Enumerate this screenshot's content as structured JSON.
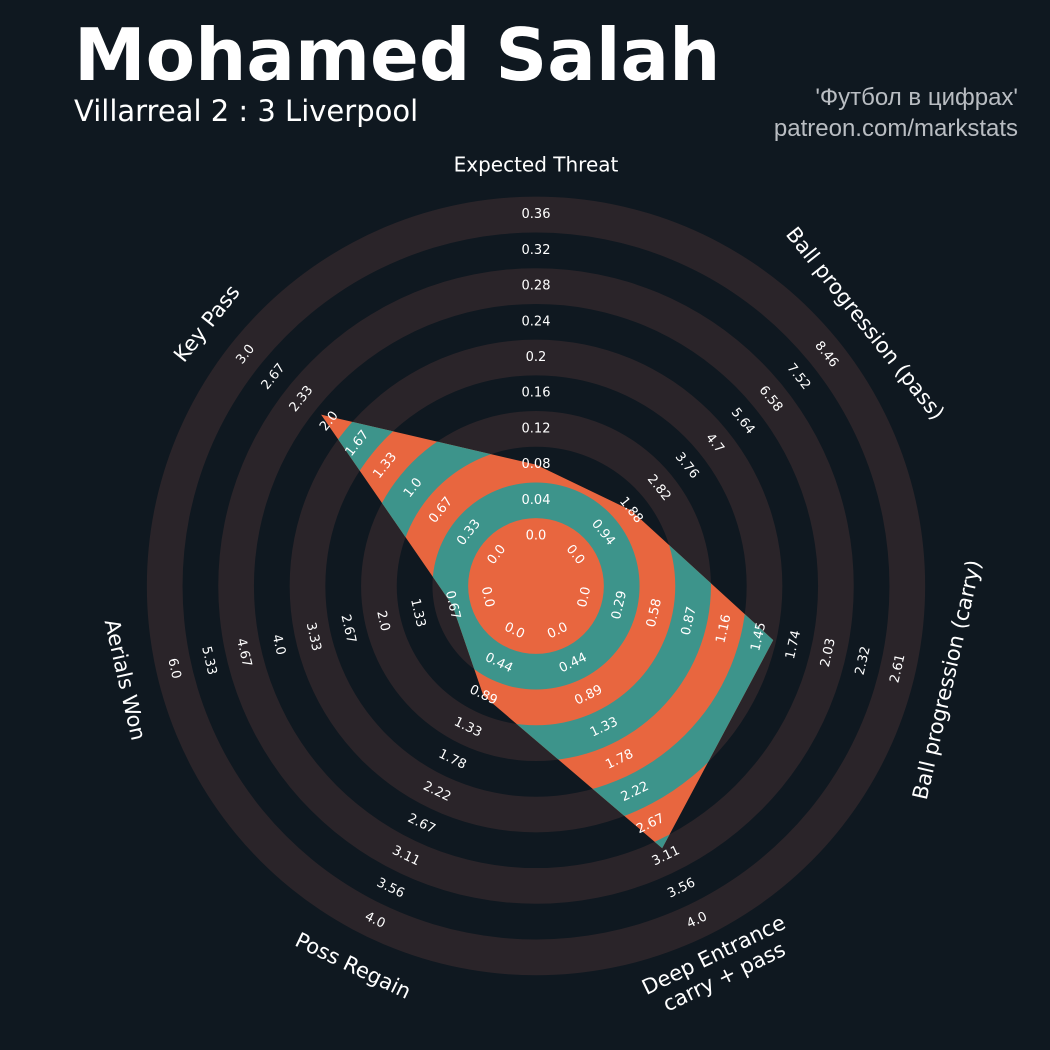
{
  "header": {
    "title": "Mohamed Salah",
    "subtitle": "Villarreal 2 : 3 Liverpool",
    "credit_line1": "'Футбол в цифрах'",
    "credit_line2": "patreon.com/markstats"
  },
  "colors": {
    "background": "#0f1820",
    "ring_band": "#2a2429",
    "player_primary": "#e8663f",
    "player_secondary": "#3d948b"
  },
  "chart_data": {
    "type": "radar",
    "title": "Mohamed Salah",
    "subtitle": "Villarreal 2 : 3 Liverpool",
    "params": [
      {
        "label": "Expected Threat",
        "value": 0.08,
        "ticks": [
          "0.0",
          "0.04",
          "0.08",
          "0.12",
          "0.16",
          "0.2",
          "0.24",
          "0.28",
          "0.32",
          "0.36"
        ]
      },
      {
        "label": "Ball progression (pass)",
        "value": 1.88,
        "ticks": [
          "0.0",
          "0.94",
          "1.88",
          "2.82",
          "3.76",
          "4.7",
          "5.64",
          "6.58",
          "7.52",
          "8.46"
        ]
      },
      {
        "label": "Ball progression (carry)",
        "value": 1.57,
        "ticks": [
          "0.0",
          "0.29",
          "0.58",
          "0.87",
          "1.16",
          "1.45",
          "1.74",
          "2.03",
          "2.32",
          "2.61"
        ]
      },
      {
        "label": "Deep Entrance\ncarry + pass",
        "value": 3.0,
        "ticks": [
          "0.0",
          "0.44",
          "0.89",
          "1.33",
          "1.78",
          "2.22",
          "2.67",
          "3.11",
          "3.56",
          "4.0"
        ]
      },
      {
        "label": "Poss Regain",
        "value": 0.89,
        "ticks": [
          "0.0",
          "0.44",
          "0.89",
          "1.33",
          "1.78",
          "2.22",
          "2.67",
          "3.11",
          "3.56",
          "4.0"
        ]
      },
      {
        "label": "Aerials Won",
        "value": 0.67,
        "ticks": [
          "0.0",
          "0.67",
          "1.33",
          "2.0",
          "2.67",
          "3.33",
          "4.0",
          "4.67",
          "5.33",
          "6.0"
        ]
      },
      {
        "label": "Key Pass",
        "value": 2.1,
        "ticks": [
          "0.0",
          "0.33",
          "0.67",
          "1.0",
          "1.33",
          "1.67",
          "2.0",
          "2.33",
          "2.67",
          "3.0"
        ]
      }
    ]
  }
}
